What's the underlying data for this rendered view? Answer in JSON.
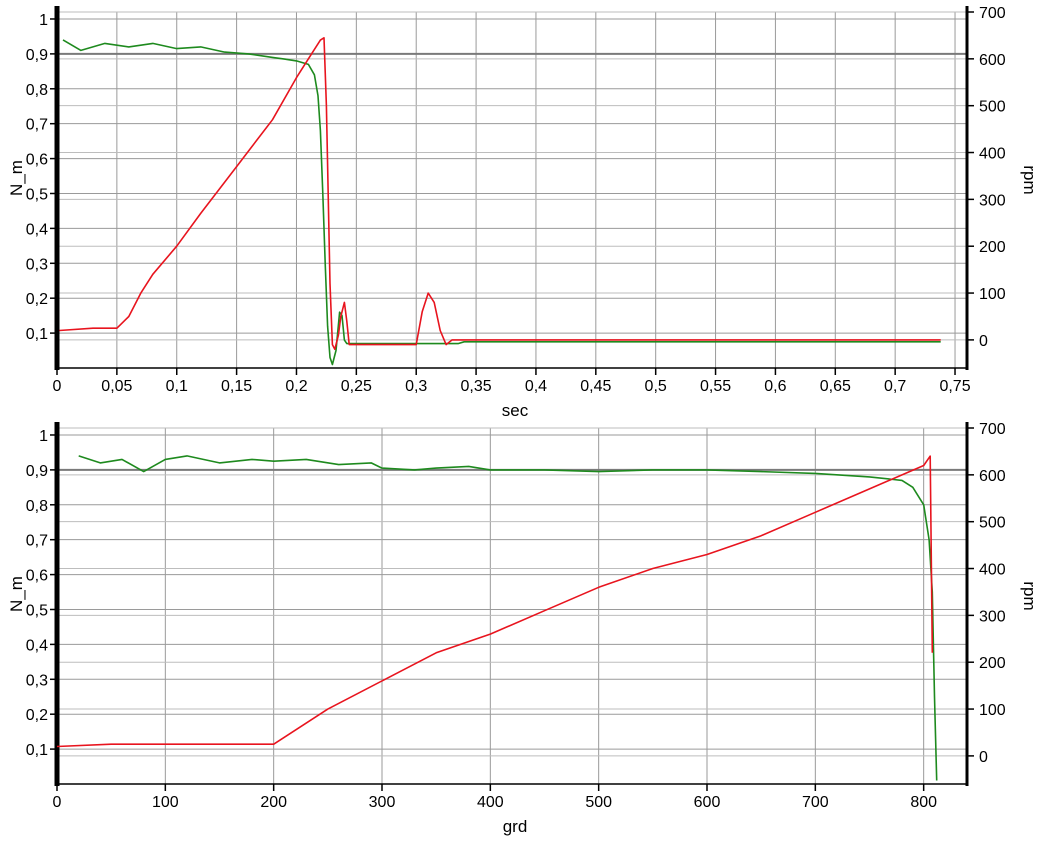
{
  "chart_data": [
    {
      "type": "line",
      "xlabel": "sec",
      "ylabel_left": "N_m",
      "ylabel_right": "rpm",
      "xlim": [
        0,
        0.76
      ],
      "ylim_left": [
        0,
        1.02
      ],
      "ylim_right": [
        -60,
        700
      ],
      "x_ticks": [
        "0",
        "0,05",
        "0,1",
        "0,15",
        "0,2",
        "0,25",
        "0,3",
        "0,35",
        "0,4",
        "0,45",
        "0,5",
        "0,55",
        "0,6",
        "0,65",
        "0,7",
        "0,75"
      ],
      "x_tick_values": [
        0,
        0.05,
        0.1,
        0.15,
        0.2,
        0.25,
        0.3,
        0.35,
        0.4,
        0.45,
        0.5,
        0.55,
        0.6,
        0.65,
        0.7,
        0.75
      ],
      "y_left_ticks": [
        "0,1",
        "0,2",
        "0,3",
        "0,4",
        "0,5",
        "0,6",
        "0,7",
        "0,8",
        "0,9",
        "1"
      ],
      "y_left_tick_values": [
        0.1,
        0.2,
        0.3,
        0.4,
        0.5,
        0.6,
        0.7,
        0.8,
        0.9,
        1.0
      ],
      "y_right_ticks": [
        "0",
        "100",
        "200",
        "300",
        "400",
        "500",
        "600",
        "700"
      ],
      "y_right_tick_values": [
        0,
        100,
        200,
        300,
        400,
        500,
        600,
        700
      ],
      "grid": true,
      "reference_line": 0.9,
      "series": [
        {
          "color": "#1e8a1e",
          "axis": "left",
          "x": [
            0.005,
            0.02,
            0.04,
            0.06,
            0.08,
            0.1,
            0.12,
            0.14,
            0.16,
            0.18,
            0.19,
            0.2,
            0.21,
            0.215,
            0.218,
            0.22,
            0.222,
            0.224,
            0.226,
            0.228,
            0.23,
            0.233,
            0.236,
            0.238,
            0.24,
            0.242,
            0.245,
            0.25,
            0.3,
            0.335,
            0.34,
            0.4,
            0.5,
            0.6,
            0.7,
            0.738
          ],
          "y": [
            0.94,
            0.91,
            0.93,
            0.92,
            0.93,
            0.915,
            0.92,
            0.905,
            0.9,
            0.89,
            0.885,
            0.88,
            0.87,
            0.84,
            0.78,
            0.68,
            0.5,
            0.3,
            0.12,
            0.03,
            0.01,
            0.05,
            0.16,
            0.15,
            0.08,
            0.07,
            0.07,
            0.07,
            0.07,
            0.07,
            0.075,
            0.075,
            0.075,
            0.075,
            0.075,
            0.075
          ]
        },
        {
          "color": "#e8141e",
          "axis": "right",
          "x": [
            0.002,
            0.03,
            0.05,
            0.06,
            0.07,
            0.08,
            0.1,
            0.12,
            0.15,
            0.18,
            0.2,
            0.21,
            0.22,
            0.223,
            0.225,
            0.228,
            0.23,
            0.232,
            0.235,
            0.237,
            0.24,
            0.242,
            0.244,
            0.25,
            0.3,
            0.305,
            0.31,
            0.315,
            0.32,
            0.325,
            0.33,
            0.34,
            0.4,
            0.5,
            0.6,
            0.7,
            0.738
          ],
          "y": [
            20,
            25,
            25,
            50,
            100,
            140,
            200,
            270,
            370,
            470,
            560,
            600,
            640,
            645,
            500,
            120,
            -10,
            -20,
            10,
            50,
            80,
            40,
            -10,
            -10,
            -10,
            60,
            100,
            80,
            20,
            -10,
            0,
            0,
            0,
            0,
            0,
            0,
            0
          ]
        }
      ]
    },
    {
      "type": "line",
      "xlabel": "grd",
      "ylabel_left": "N_m",
      "ylabel_right": "rpm",
      "xlim": [
        0,
        840
      ],
      "ylim_left": [
        0,
        1.02
      ],
      "ylim_right": [
        -60,
        700
      ],
      "x_ticks": [
        "0",
        "100",
        "200",
        "300",
        "400",
        "500",
        "600",
        "700",
        "800"
      ],
      "x_tick_values": [
        0,
        100,
        200,
        300,
        400,
        500,
        600,
        700,
        800
      ],
      "y_left_ticks": [
        "0,1",
        "0,2",
        "0,3",
        "0,4",
        "0,5",
        "0,6",
        "0,7",
        "0,8",
        "0,9",
        "1"
      ],
      "y_left_tick_values": [
        0.1,
        0.2,
        0.3,
        0.4,
        0.5,
        0.6,
        0.7,
        0.8,
        0.9,
        1.0
      ],
      "y_right_ticks": [
        "0",
        "100",
        "200",
        "300",
        "400",
        "500",
        "600",
        "700"
      ],
      "y_right_tick_values": [
        0,
        100,
        200,
        300,
        400,
        500,
        600,
        700
      ],
      "grid": true,
      "reference_line": 0.9,
      "series": [
        {
          "color": "#1e8a1e",
          "axis": "left",
          "x": [
            20,
            40,
            60,
            80,
            100,
            120,
            150,
            180,
            200,
            230,
            260,
            290,
            300,
            330,
            350,
            380,
            400,
            450,
            500,
            550,
            600,
            650,
            700,
            750,
            780,
            790,
            800,
            805,
            808,
            810,
            812
          ],
          "y": [
            0.94,
            0.92,
            0.93,
            0.895,
            0.93,
            0.94,
            0.92,
            0.93,
            0.925,
            0.93,
            0.915,
            0.92,
            0.905,
            0.9,
            0.905,
            0.91,
            0.9,
            0.9,
            0.895,
            0.9,
            0.9,
            0.895,
            0.89,
            0.88,
            0.87,
            0.85,
            0.8,
            0.7,
            0.55,
            0.25,
            0.01
          ]
        },
        {
          "color": "#e8141e",
          "axis": "right",
          "x": [
            0,
            50,
            100,
            150,
            200,
            250,
            300,
            350,
            400,
            450,
            500,
            550,
            600,
            650,
            700,
            750,
            800,
            806,
            808
          ],
          "y": [
            20,
            25,
            25,
            25,
            25,
            100,
            160,
            220,
            260,
            310,
            360,
            400,
            430,
            470,
            520,
            570,
            620,
            640,
            220
          ]
        }
      ]
    }
  ]
}
